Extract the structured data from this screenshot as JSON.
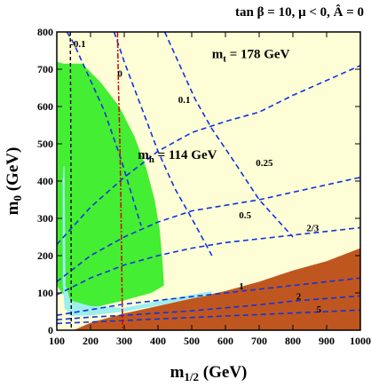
{
  "chart_data": {
    "type": "area",
    "title": "tan β = 10, μ < 0, Â = 0",
    "xlabel": "m1/2 (GeV)",
    "ylabel": "m0 (GeV)",
    "xlim": [
      100,
      1000
    ],
    "ylim": [
      0,
      800
    ],
    "xticks": [
      100,
      200,
      300,
      400,
      500,
      600,
      700,
      800,
      900,
      1000
    ],
    "yticks": [
      0,
      100,
      200,
      300,
      400,
      500,
      600,
      700,
      800
    ],
    "annotations": {
      "mt": "mt = 178 GeV",
      "mh": "mh = 114 GeV"
    },
    "colors": {
      "allowed": "#fdfdd6",
      "excluded_stau": "#c0561f",
      "gminus2": "#44ee33",
      "relic": "#9eeeee",
      "contour": "#1133dd",
      "higgs": "#dd0000",
      "chargino": "#000000"
    },
    "regions": [
      {
        "name": "stau LSP excluded",
        "points": [
          [
            100,
            0
          ],
          [
            150,
            0
          ],
          [
            1000,
            0
          ],
          [
            1000,
            220
          ],
          [
            900,
            185
          ],
          [
            800,
            160
          ],
          [
            700,
            130
          ],
          [
            600,
            105
          ],
          [
            500,
            85
          ],
          [
            400,
            65
          ],
          [
            300,
            45
          ],
          [
            200,
            20
          ],
          [
            150,
            0
          ]
        ]
      },
      {
        "name": "g-2 favoured",
        "points": [
          [
            100,
            720
          ],
          [
            120,
            715
          ],
          [
            175,
            715
          ],
          [
            230,
            665
          ],
          [
            285,
            600
          ],
          [
            330,
            520
          ],
          [
            365,
            435
          ],
          [
            390,
            350
          ],
          [
            405,
            270
          ],
          [
            413,
            190
          ],
          [
            418,
            120
          ],
          [
            380,
            100
          ],
          [
            300,
            80
          ],
          [
            230,
            65
          ],
          [
            175,
            60
          ],
          [
            145,
            70
          ],
          [
            130,
            90
          ],
          [
            115,
            100
          ],
          [
            100,
            120
          ]
        ]
      },
      {
        "name": "relic density strip",
        "points": [
          [
            120,
            440
          ],
          [
            123,
            440
          ],
          [
            126,
            120
          ],
          [
            140,
            80
          ],
          [
            200,
            65
          ],
          [
            300,
            60
          ],
          [
            400,
            78
          ],
          [
            500,
            95
          ],
          [
            560,
            105
          ],
          [
            560,
            95
          ],
          [
            500,
            85
          ],
          [
            400,
            66
          ],
          [
            300,
            50
          ],
          [
            200,
            40
          ],
          [
            140,
            38
          ],
          [
            123,
            60
          ],
          [
            118,
            120
          ],
          [
            117,
            400
          ]
        ]
      }
    ],
    "dashed_contours": [
      {
        "label": "-0.1",
        "points": [
          [
            130,
            800
          ],
          [
            150,
            770
          ],
          [
            190,
            690
          ],
          [
            240,
            590
          ],
          [
            290,
            460
          ],
          [
            350,
            280
          ]
        ]
      },
      {
        "label": "0",
        "points": [
          [
            270,
            800
          ],
          [
            300,
            720
          ],
          [
            350,
            600
          ],
          [
            400,
            480
          ],
          [
            450,
            380
          ],
          [
            500,
            300
          ],
          [
            560,
            200
          ]
        ]
      },
      {
        "label": "0.1",
        "points": [
          [
            420,
            800
          ],
          [
            460,
            720
          ],
          [
            510,
            620
          ],
          [
            560,
            540
          ],
          [
            620,
            460
          ],
          [
            700,
            350
          ],
          [
            800,
            250
          ]
        ]
      },
      {
        "label": "0.25",
        "points": [
          [
            100,
            230
          ],
          [
            200,
            330
          ],
          [
            300,
            410
          ],
          [
            400,
            480
          ],
          [
            500,
            530
          ],
          [
            600,
            560
          ],
          [
            700,
            585
          ],
          [
            800,
            630
          ],
          [
            900,
            670
          ],
          [
            1000,
            710
          ]
        ]
      },
      {
        "label": "0.5",
        "points": [
          [
            100,
            130
          ],
          [
            200,
            200
          ],
          [
            300,
            250
          ],
          [
            400,
            290
          ],
          [
            500,
            320
          ],
          [
            600,
            335
          ],
          [
            700,
            350
          ],
          [
            800,
            370
          ],
          [
            900,
            390
          ],
          [
            1000,
            410
          ]
        ]
      },
      {
        "label": "2/3",
        "points": [
          [
            100,
            95
          ],
          [
            200,
            140
          ],
          [
            300,
            175
          ],
          [
            400,
            200
          ],
          [
            500,
            220
          ],
          [
            600,
            235
          ],
          [
            700,
            245
          ],
          [
            800,
            255
          ],
          [
            900,
            265
          ],
          [
            1000,
            275
          ]
        ]
      },
      {
        "label": "1",
        "points": [
          [
            100,
            40
          ],
          [
            200,
            55
          ],
          [
            300,
            70
          ],
          [
            400,
            80
          ],
          [
            500,
            90
          ],
          [
            600,
            100
          ],
          [
            700,
            110
          ],
          [
            800,
            120
          ],
          [
            900,
            130
          ],
          [
            1000,
            140
          ]
        ]
      },
      {
        "label": "2",
        "points": [
          [
            100,
            28
          ],
          [
            200,
            35
          ],
          [
            300,
            40
          ],
          [
            400,
            46
          ],
          [
            500,
            52
          ],
          [
            600,
            60
          ],
          [
            700,
            68
          ],
          [
            800,
            78
          ],
          [
            900,
            85
          ],
          [
            1000,
            92
          ]
        ]
      },
      {
        "label": "5",
        "points": [
          [
            100,
            18
          ],
          [
            200,
            22
          ],
          [
            300,
            26
          ],
          [
            400,
            30
          ],
          [
            500,
            34
          ],
          [
            600,
            38
          ],
          [
            700,
            42
          ],
          [
            800,
            46
          ],
          [
            900,
            50
          ],
          [
            1000,
            54
          ]
        ]
      }
    ],
    "higgs_mass_line": {
      "label": "mh = 114 GeV",
      "points": [
        [
          280,
          800
        ],
        [
          283,
          650
        ],
        [
          287,
          500
        ],
        [
          290,
          350
        ],
        [
          292,
          200
        ],
        [
          295,
          0
        ]
      ]
    },
    "chargino_line": {
      "points": [
        [
          140,
          800
        ],
        [
          142,
          400
        ],
        [
          143,
          0
        ]
      ]
    }
  }
}
